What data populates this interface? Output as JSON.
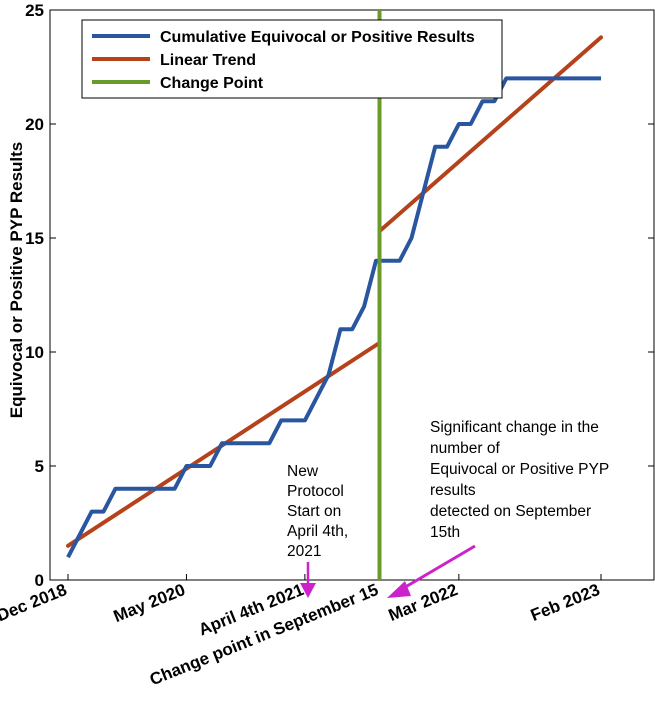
{
  "chart_data": {
    "type": "line",
    "title": "",
    "xlabel": "",
    "ylabel": "Equivocal or Positive PYP Results",
    "xlim": [
      0,
      50
    ],
    "ylim": [
      0,
      25
    ],
    "yticks": [
      0,
      5,
      10,
      15,
      20,
      25
    ],
    "xticks": [
      {
        "x": 0,
        "label": "Dec 2018"
      },
      {
        "x": 10,
        "label": "May 2020"
      },
      {
        "x": 20,
        "label": "April 4th 2021"
      },
      {
        "x": 26.3,
        "label": "Change point in September 15"
      },
      {
        "x": 33,
        "label": "Mar 2022"
      },
      {
        "x": 45,
        "label": "Feb 2023"
      }
    ],
    "series": [
      {
        "name": "Cumulative Equivocal or Positive Results",
        "color": "#2a56a0",
        "x": [
          0,
          1,
          2,
          3,
          4,
          5,
          6,
          7,
          8,
          9,
          10,
          11,
          12,
          13,
          14,
          15,
          16,
          17,
          18,
          19,
          20,
          21,
          22,
          23,
          24,
          25,
          26,
          27,
          28,
          29,
          30,
          31,
          32,
          33,
          34,
          35,
          36,
          37,
          38,
          39,
          40,
          41,
          42,
          43,
          44,
          45
        ],
        "values": [
          1,
          2,
          3,
          3,
          4,
          4,
          4,
          4,
          4,
          4,
          5,
          5,
          5,
          6,
          6,
          6,
          6,
          6,
          7,
          7,
          7,
          8,
          9,
          11,
          11,
          12,
          14,
          14,
          14,
          15,
          17,
          19,
          19,
          20,
          20,
          21,
          21,
          22,
          22,
          22,
          22,
          22,
          22,
          22,
          22,
          22
        ]
      },
      {
        "name": "Linear Trend",
        "color": "#b5421a",
        "segments": [
          {
            "x": [
              0,
              26.3
            ],
            "values": [
              1.5,
              10.4
            ]
          },
          {
            "x": [
              26.3,
              45
            ],
            "values": [
              15.3,
              23.8
            ]
          }
        ]
      },
      {
        "name": "Change Point",
        "color": "#6a9a2a",
        "x": 26.3
      }
    ],
    "legend": {
      "position": "top-left",
      "entries": [
        "Cumulative Equivocal or Positive Results",
        "Linear Trend",
        "Change Point"
      ]
    },
    "annotations": [
      {
        "id": "protocol",
        "lines": [
          "New",
          "Protocol",
          "Start on",
          "April 4th,",
          "2021"
        ],
        "arrow_color": "#cc22cc"
      },
      {
        "id": "significant",
        "lines": [
          "Significant change in the",
          "number of",
          "Equivocal or Positive PYP",
          "results",
          "detected on September",
          "15th"
        ],
        "arrow_color": "#cc22cc"
      }
    ]
  }
}
